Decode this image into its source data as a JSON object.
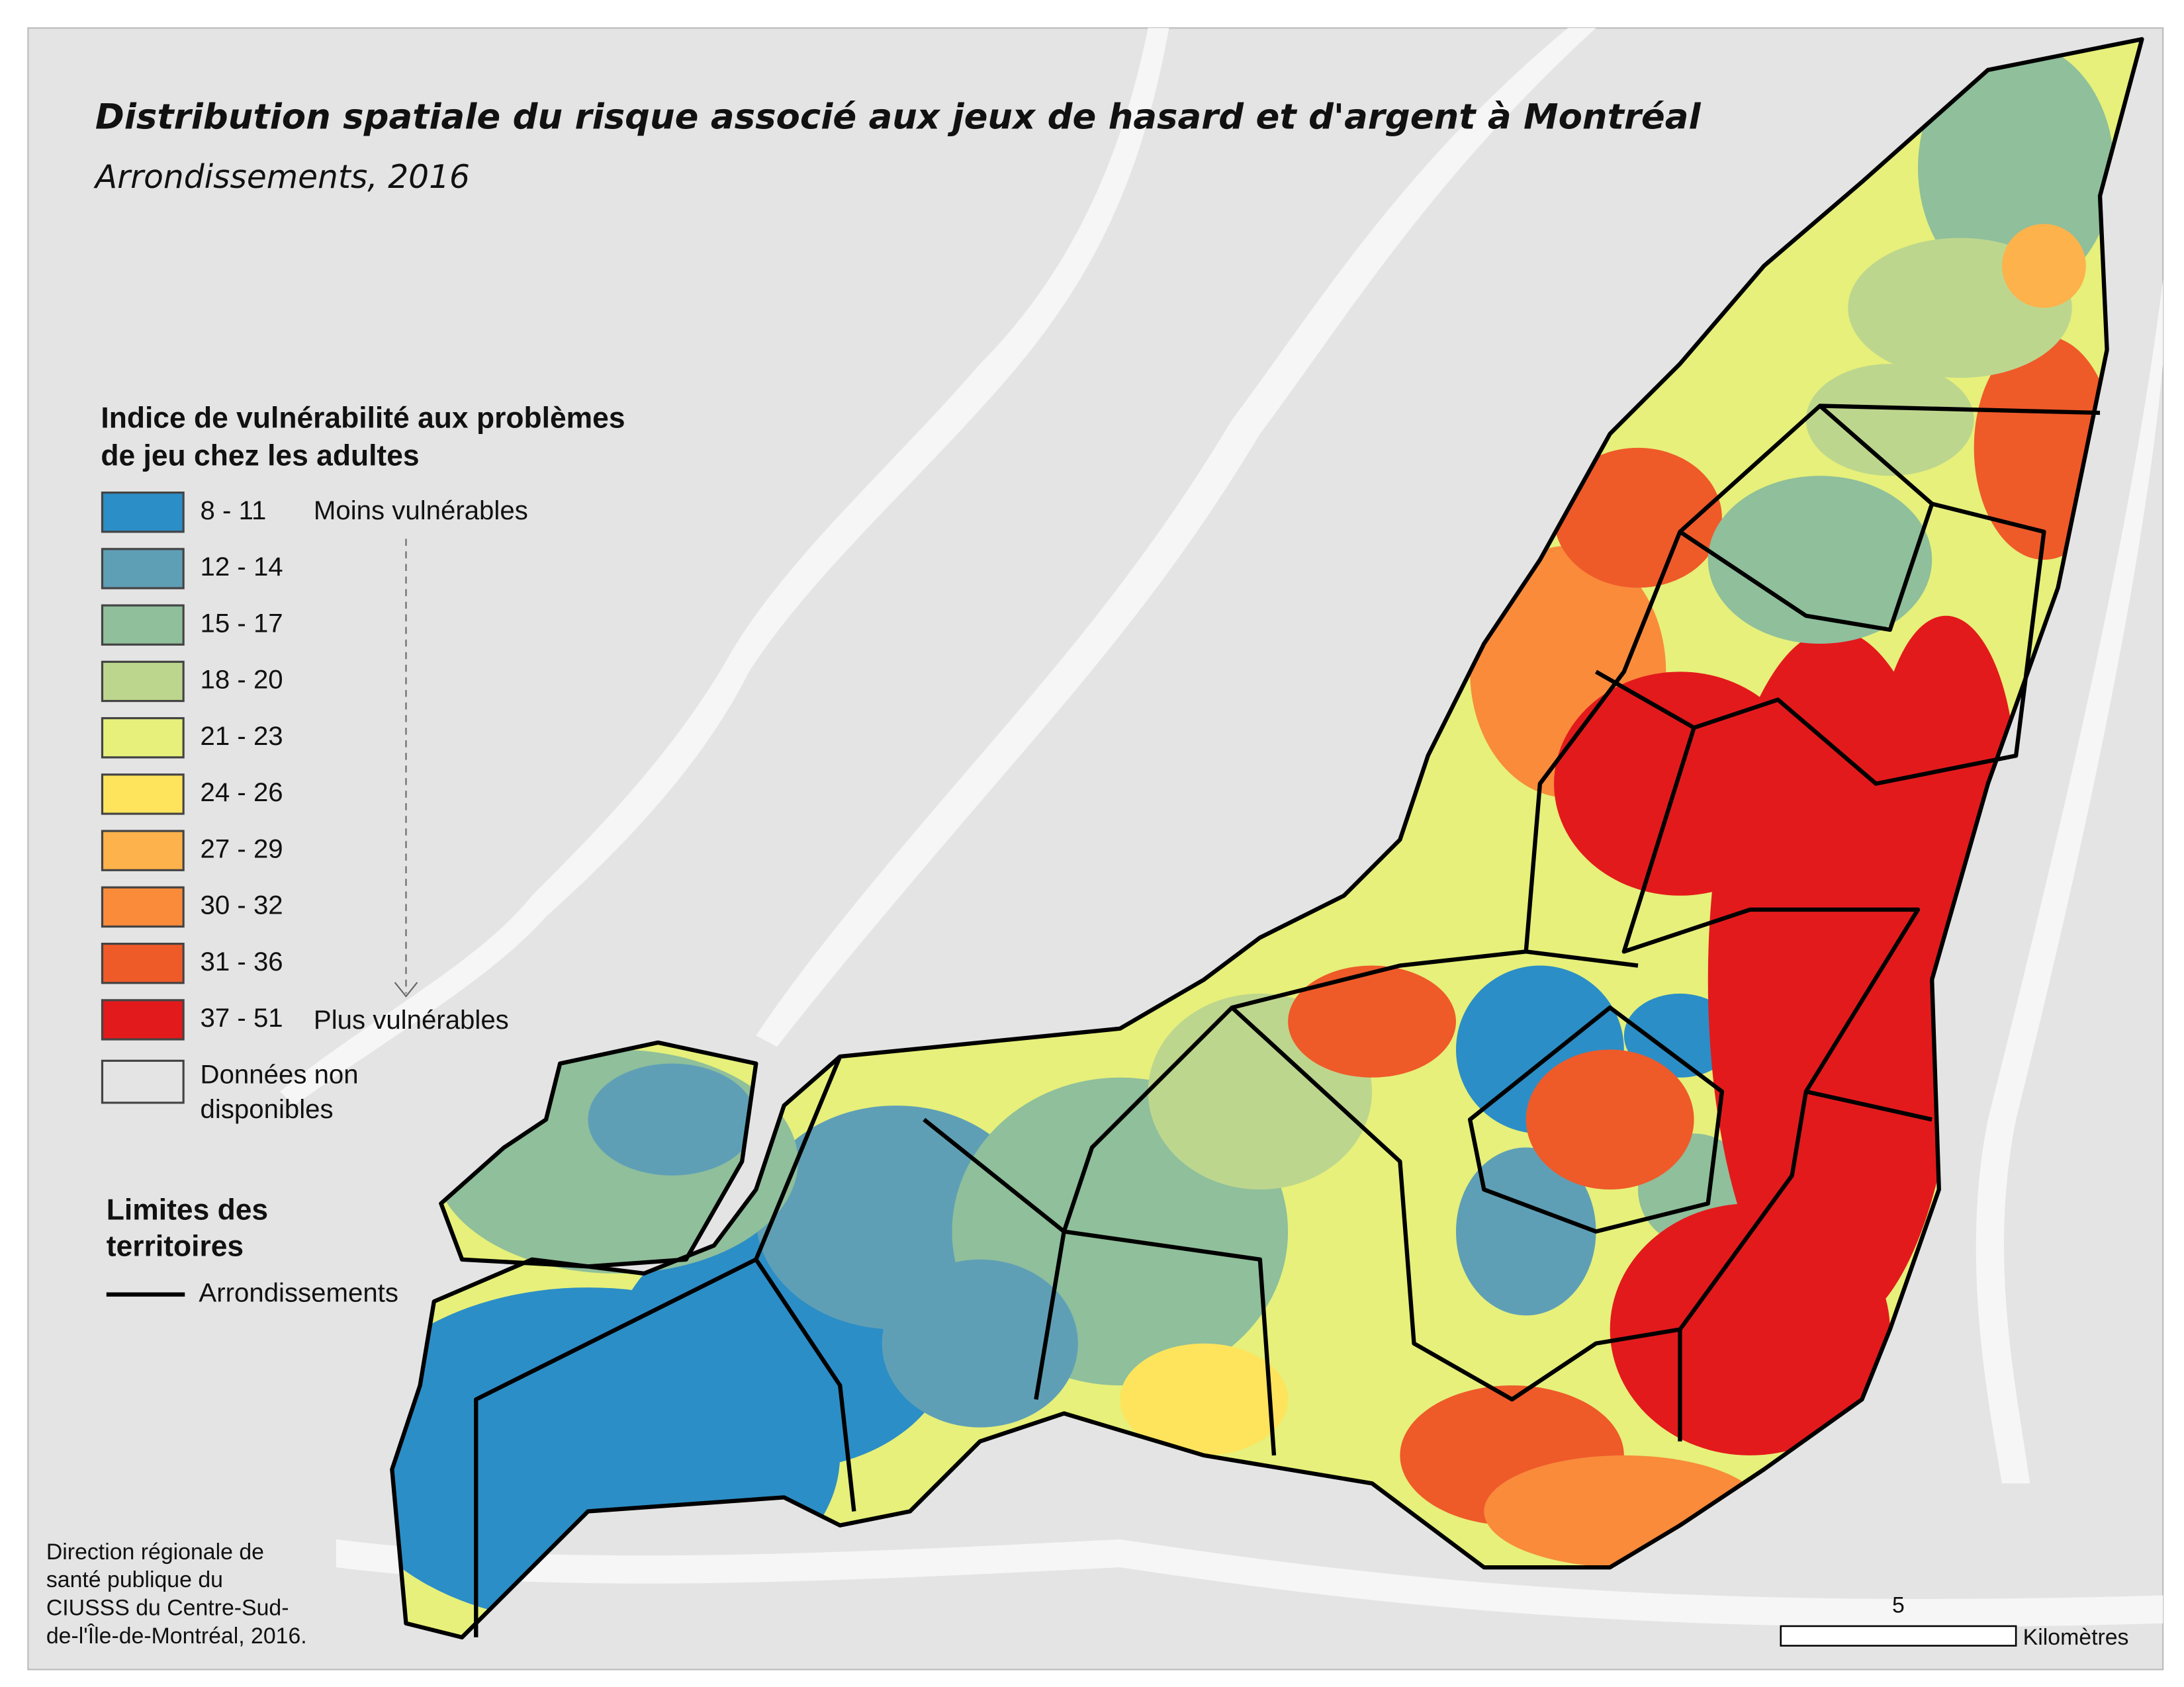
{
  "title": "Distribution spatiale du risque associé aux jeux de hasard et d'argent à Montréal",
  "subtitle": "Arrondissements, 2016",
  "legend": {
    "title": [
      "Indice de vulnérabilité aux problèmes",
      "de jeu chez les adultes"
    ],
    "items": [
      {
        "label": "8 - 11",
        "color": "#2c8ec6"
      },
      {
        "label": "12 - 14",
        "color": "#5f9fb6"
      },
      {
        "label": "15 - 17",
        "color": "#8fbf9b"
      },
      {
        "label": "18 - 20",
        "color": "#bdd68e"
      },
      {
        "label": "21 - 23",
        "color": "#e6f07a"
      },
      {
        "label": "24 - 26",
        "color": "#fde45c"
      },
      {
        "label": "27 - 29",
        "color": "#fdb24b"
      },
      {
        "label": "30 - 32",
        "color": "#f98b3b"
      },
      {
        "label": "31 - 36",
        "color": "#ef5a29"
      },
      {
        "label": "37 - 51",
        "color": "#e31a1c"
      }
    ],
    "low_label": "Moins vulnérables",
    "high_label": "Plus vulnérables",
    "no_data": {
      "label": [
        "Données non",
        "disponibles"
      ],
      "color": "#e4e4e4"
    }
  },
  "boundaries": {
    "title": [
      "Limites des",
      "territoires"
    ],
    "label": "Arrondissements"
  },
  "source": [
    "Direction régionale de",
    "santé publique du",
    "CIUSSS du Centre-Sud-",
    "de-l'Île-de-Montréal, 2016."
  ],
  "scale_bar": {
    "value": 5,
    "unit": "Kilomètres"
  }
}
